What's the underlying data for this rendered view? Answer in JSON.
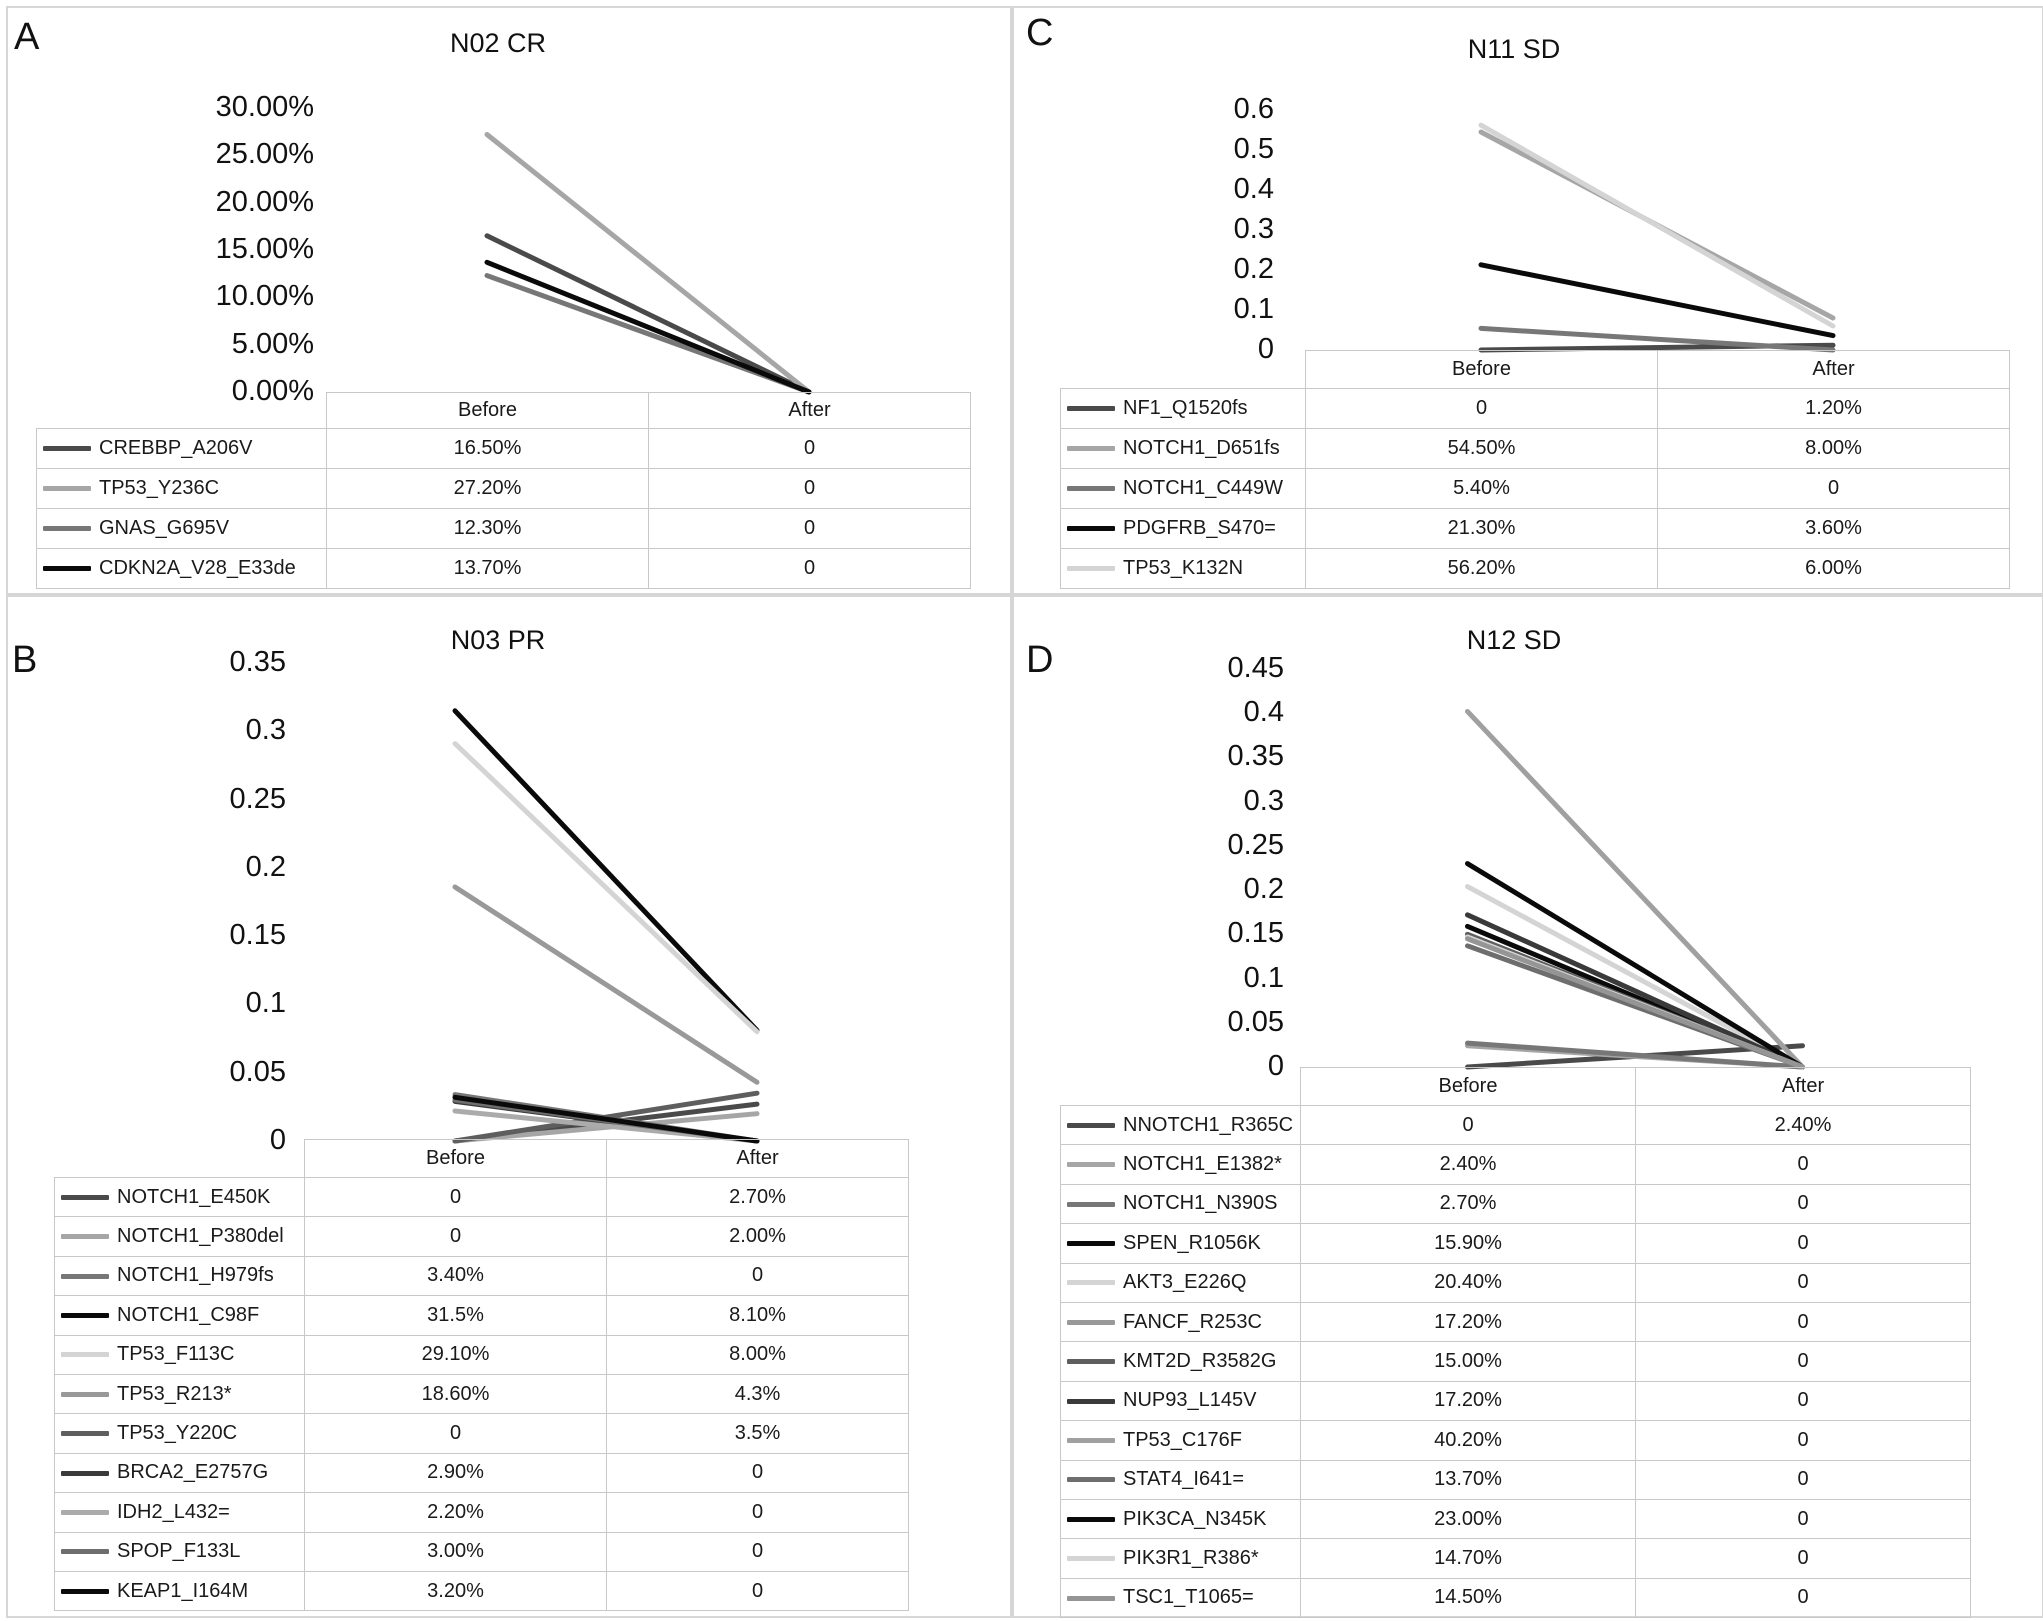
{
  "panels": [
    {
      "id": "A",
      "letter": "A",
      "chart_data": {
        "type": "line",
        "title": "N02 CR",
        "categories": [
          "Before",
          "After"
        ],
        "ylim": [
          0,
          0.3
        ],
        "yticks": [
          "30.00%",
          "25.00%",
          "20.00%",
          "15.00%",
          "10.00%",
          "5.00%",
          "0.00%"
        ],
        "series": [
          {
            "name": "CREBBP_A206V",
            "values": [
              0.165,
              0
            ],
            "labels": [
              "16.50%",
              "0"
            ],
            "color": "#4a4a4a"
          },
          {
            "name": "TP53_Y236C",
            "values": [
              0.272,
              0
            ],
            "labels": [
              "27.20%",
              "0"
            ],
            "color": "#a6a6a6"
          },
          {
            "name": "GNAS_G695V",
            "values": [
              0.123,
              0
            ],
            "labels": [
              "12.30%",
              "0"
            ],
            "color": "#777777"
          },
          {
            "name": "CDKN2A_V28_E33de",
            "values": [
              0.137,
              0
            ],
            "labels": [
              "13.70%",
              "0"
            ],
            "color": "#0a0a0a"
          }
        ]
      }
    },
    {
      "id": "C",
      "letter": "C",
      "chart_data": {
        "type": "line",
        "title": "N11 SD",
        "categories": [
          "Before",
          "After"
        ],
        "ylim": [
          0,
          0.6
        ],
        "yticks": [
          "0.6",
          "0.5",
          "0.4",
          "0.3",
          "0.2",
          "0.1",
          "0"
        ],
        "series": [
          {
            "name": "NF1_Q1520fs",
            "values": [
              0,
              0.012
            ],
            "labels": [
              "0",
              "1.20%"
            ],
            "color": "#4a4a4a"
          },
          {
            "name": "NOTCH1_D651fs",
            "values": [
              0.545,
              0.08
            ],
            "labels": [
              "54.50%",
              "8.00%"
            ],
            "color": "#a6a6a6"
          },
          {
            "name": "NOTCH1_C449W",
            "values": [
              0.054,
              0
            ],
            "labels": [
              "5.40%",
              "0"
            ],
            "color": "#777777"
          },
          {
            "name": "PDGFRB_S470=",
            "values": [
              0.213,
              0.036
            ],
            "labels": [
              "21.30%",
              "3.60%"
            ],
            "color": "#0a0a0a"
          },
          {
            "name": "TP53_K132N",
            "values": [
              0.562,
              0.06
            ],
            "labels": [
              "56.20%",
              "6.00%"
            ],
            "color": "#d4d4d4"
          }
        ]
      }
    },
    {
      "id": "B",
      "letter": "B",
      "chart_data": {
        "type": "line",
        "title": "N03 PR",
        "categories": [
          "Before",
          "After"
        ],
        "ylim": [
          0,
          0.35
        ],
        "yticks": [
          "0.35",
          "0.3",
          "0.25",
          "0.2",
          "0.15",
          "0.1",
          "0.05",
          "0"
        ],
        "series": [
          {
            "name": "NOTCH1_E450K",
            "values": [
              0,
              0.027
            ],
            "labels": [
              "0",
              "2.70%"
            ],
            "color": "#4a4a4a"
          },
          {
            "name": "NOTCH1_P380del",
            "values": [
              0,
              0.02
            ],
            "labels": [
              "0",
              "2.00%"
            ],
            "color": "#a6a6a6"
          },
          {
            "name": "NOTCH1_H979fs",
            "values": [
              0.034,
              0
            ],
            "labels": [
              "3.40%",
              "0"
            ],
            "color": "#777777"
          },
          {
            "name": "NOTCH1_C98F",
            "values": [
              0.315,
              0.081
            ],
            "labels": [
              "31.5%",
              "8.10%"
            ],
            "color": "#0a0a0a"
          },
          {
            "name": "TP53_F113C",
            "values": [
              0.291,
              0.08
            ],
            "labels": [
              "29.10%",
              "8.00%"
            ],
            "color": "#d4d4d4"
          },
          {
            "name": "TP53_R213*",
            "values": [
              0.186,
              0.043
            ],
            "labels": [
              "18.60%",
              "4.3%"
            ],
            "color": "#999999"
          },
          {
            "name": "TP53_Y220C",
            "values": [
              0,
              0.035
            ],
            "labels": [
              "0",
              "3.5%"
            ],
            "color": "#5e5e5e"
          },
          {
            "name": "BRCA2_E2757G",
            "values": [
              0.029,
              0
            ],
            "labels": [
              "2.90%",
              "0"
            ],
            "color": "#3a3a3a"
          },
          {
            "name": "IDH2_L432=",
            "values": [
              0.022,
              0
            ],
            "labels": [
              "2.20%",
              "0"
            ],
            "color": "#ababab"
          },
          {
            "name": "SPOP_F133L",
            "values": [
              0.03,
              0
            ],
            "labels": [
              "3.00%",
              "0"
            ],
            "color": "#6e6e6e"
          },
          {
            "name": "KEAP1_I164M",
            "values": [
              0.032,
              0
            ],
            "labels": [
              "3.20%",
              "0"
            ],
            "color": "#0a0a0a"
          }
        ]
      }
    },
    {
      "id": "D",
      "letter": "D",
      "chart_data": {
        "type": "line",
        "title": "N12 SD",
        "categories": [
          "Before",
          "After"
        ],
        "ylim": [
          0,
          0.45
        ],
        "yticks": [
          "0.45",
          "0.4",
          "0.35",
          "0.3",
          "0.25",
          "0.2",
          "0.15",
          "0.1",
          "0.05",
          "0"
        ],
        "series": [
          {
            "name": "NNOTCH1_R365C",
            "values": [
              0,
              0.024
            ],
            "labels": [
              "0",
              "2.40%"
            ],
            "color": "#4a4a4a"
          },
          {
            "name": "NOTCH1_E1382*",
            "values": [
              0.024,
              0
            ],
            "labels": [
              "2.40%",
              "0"
            ],
            "color": "#a6a6a6"
          },
          {
            "name": "NOTCH1_N390S",
            "values": [
              0.027,
              0
            ],
            "labels": [
              "2.70%",
              "0"
            ],
            "color": "#777777"
          },
          {
            "name": "SPEN_R1056K",
            "values": [
              0.159,
              0
            ],
            "labels": [
              "15.90%",
              "0"
            ],
            "color": "#0a0a0a"
          },
          {
            "name": "AKT3_E226Q",
            "values": [
              0.204,
              0
            ],
            "labels": [
              "20.40%",
              "0"
            ],
            "color": "#d4d4d4"
          },
          {
            "name": "FANCF_R253C",
            "values": [
              0.172,
              0
            ],
            "labels": [
              "17.20%",
              "0"
            ],
            "color": "#999999"
          },
          {
            "name": "KMT2D_R3582G",
            "values": [
              0.15,
              0
            ],
            "labels": [
              "15.00%",
              "0"
            ],
            "color": "#5e5e5e"
          },
          {
            "name": "NUP93_L145V",
            "values": [
              0.172,
              0
            ],
            "labels": [
              "17.20%",
              "0"
            ],
            "color": "#3a3a3a"
          },
          {
            "name": "TP53_C176F",
            "values": [
              0.402,
              0
            ],
            "labels": [
              "40.20%",
              "0"
            ],
            "color": "#a0a0a0"
          },
          {
            "name": "STAT4_I641=",
            "values": [
              0.137,
              0
            ],
            "labels": [
              "13.70%",
              "0"
            ],
            "color": "#6e6e6e"
          },
          {
            "name": "PIK3CA_N345K",
            "values": [
              0.23,
              0
            ],
            "labels": [
              "23.00%",
              "0"
            ],
            "color": "#0a0a0a"
          },
          {
            "name": "PIK3R1_R386*",
            "values": [
              0.147,
              0
            ],
            "labels": [
              "14.70%",
              "0"
            ],
            "color": "#d4d4d4"
          },
          {
            "name": "TSC1_T1065=",
            "values": [
              0.145,
              0
            ],
            "labels": [
              "14.50%",
              "0"
            ],
            "color": "#959595"
          }
        ]
      }
    }
  ]
}
